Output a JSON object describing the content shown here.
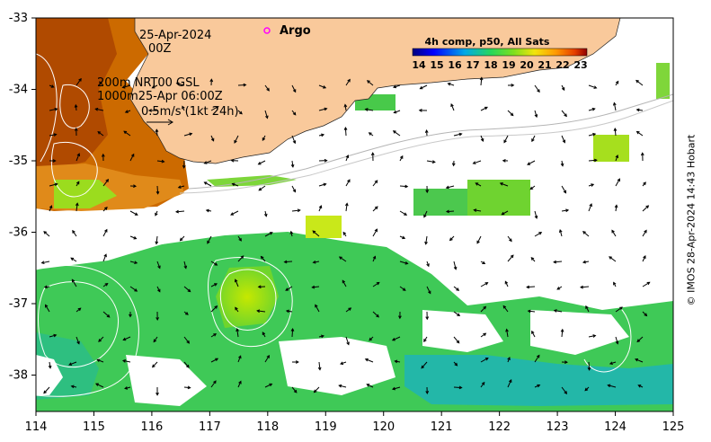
{
  "map": {
    "date_line": "25-Apr-2024",
    "time_line": "00Z",
    "argo_label": "Argo",
    "contour_line_1": "200m  NRT00 GSL",
    "contour_line_2": "1000m25-Apr 06:00Z",
    "vector_scale": "0.5m/s (1kt 24h)",
    "credit": "© IMOS 28-Apr-2024 14:43 Hobart",
    "lon_ticks": [
      "114",
      "115",
      "116",
      "117",
      "118",
      "119",
      "120",
      "121",
      "122",
      "123",
      "124",
      "125"
    ],
    "lat_ticks": [
      "-33",
      "-34",
      "-35",
      "-36",
      "-37",
      "-38"
    ]
  },
  "colorbar": {
    "title": "4h comp, p50, All Sats",
    "ticks": [
      "14",
      "15",
      "16",
      "17",
      "18",
      "19",
      "20",
      "21",
      "22",
      "23"
    ]
  },
  "colors": {
    "land": "#f9c99b",
    "argo_marker": "#ff00ff",
    "contour": "#b5b5b5"
  }
}
